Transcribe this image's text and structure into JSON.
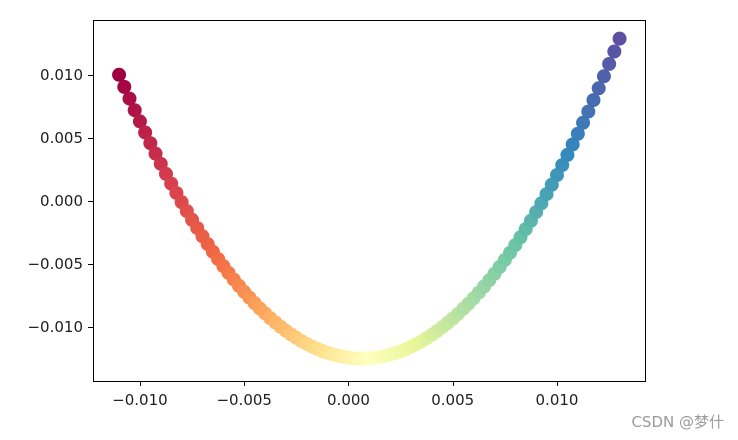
{
  "watermark": {
    "text": "CSDN @梦什"
  },
  "chart_data": {
    "type": "scatter",
    "xlim": [
      -0.01225,
      0.01422
    ],
    "ylim": [
      -0.01429,
      0.01437
    ],
    "x_ticks": [
      -0.01,
      -0.005,
      0.0,
      0.005,
      0.01
    ],
    "x_tick_labels": [
      "−0.010",
      "−0.005",
      "0.000",
      "0.005",
      "0.010"
    ],
    "y_ticks": [
      -0.01,
      -0.005,
      0.0,
      0.005,
      0.01
    ],
    "y_tick_labels": [
      "−0.010",
      "−0.005",
      "0.000",
      "0.005",
      "0.010"
    ],
    "grid": false,
    "legend": "none",
    "colormap": "Spectral",
    "colormap_stops": [
      "#9e0142",
      "#d53e4f",
      "#f46d43",
      "#fdae61",
      "#fee08b",
      "#ffffbf",
      "#e6f598",
      "#abdda4",
      "#66c2a5",
      "#3288bd",
      "#5e4fa2"
    ],
    "x": [
      -0.011,
      -0.01075,
      -0.0105,
      -0.01025,
      -0.01,
      -0.00975,
      -0.0095,
      -0.00925,
      -0.009,
      -0.00875,
      -0.0085,
      -0.00825,
      -0.008,
      -0.00775,
      -0.0075,
      -0.00725,
      -0.007,
      -0.00675,
      -0.0065,
      -0.00625,
      -0.006,
      -0.00575,
      -0.0055,
      -0.00525,
      -0.005,
      -0.00475,
      -0.0045,
      -0.00425,
      -0.004,
      -0.00375,
      -0.0035,
      -0.00325,
      -0.003,
      -0.00275,
      -0.0025,
      -0.00225,
      -0.002,
      -0.00175,
      -0.0015,
      -0.00125,
      -0.001,
      -0.00075,
      -0.0005,
      -0.00025,
      0.0,
      0.00025,
      0.0005,
      0.00075,
      0.001,
      0.00125,
      0.0015,
      0.00175,
      0.002,
      0.00225,
      0.0025,
      0.00275,
      0.003,
      0.00325,
      0.0035,
      0.00375,
      0.004,
      0.00425,
      0.0045,
      0.00475,
      0.005,
      0.00525,
      0.0055,
      0.00575,
      0.006,
      0.00625,
      0.0065,
      0.00675,
      0.007,
      0.00725,
      0.0075,
      0.00775,
      0.008,
      0.00825,
      0.0085,
      0.00875,
      0.009,
      0.00925,
      0.0095,
      0.00975,
      0.01,
      0.01025,
      0.0105,
      0.01075,
      0.011,
      0.01125,
      0.0115,
      0.01175,
      0.012,
      0.01225,
      0.0125,
      0.01275,
      0.013
    ],
    "y": [
      0.01002,
      0.00906,
      0.00813,
      0.00721,
      0.00632,
      0.00544,
      0.00459,
      0.00376,
      0.00295,
      0.00215,
      0.00138,
      0.00064,
      -9e-05,
      -0.0008,
      -0.00149,
      -0.00215,
      -0.0028,
      -0.00342,
      -0.00403,
      -0.00461,
      -0.00517,
      -0.00571,
      -0.00623,
      -0.00673,
      -0.00721,
      -0.00767,
      -0.00811,
      -0.00853,
      -0.00892,
      -0.0093,
      -0.00965,
      -0.00999,
      -0.0103,
      -0.01059,
      -0.01086,
      -0.01111,
      -0.01134,
      -0.01155,
      -0.01174,
      -0.01191,
      -0.01205,
      -0.01218,
      -0.01228,
      -0.01237,
      -0.01243,
      -0.01248,
      -0.0125,
      -0.0125,
      -0.01248,
      -0.01244,
      -0.01238,
      -0.0123,
      -0.01219,
      -0.01207,
      -0.01193,
      -0.01176,
      -0.01157,
      -0.01137,
      -0.01114,
      -0.01089,
      -0.01062,
      -0.01033,
      -0.01002,
      -0.00969,
      -0.00934,
      -0.00897,
      -0.00857,
      -0.00816,
      -0.00773,
      -0.00727,
      -0.00679,
      -0.0063,
      -0.00578,
      -0.00524,
      -0.00468,
      -0.0041,
      -0.0035,
      -0.00288,
      -0.00223,
      -0.00157,
      -0.00088,
      -0.00018,
      0.00055,
      0.00129,
      0.00206,
      0.00285,
      0.00366,
      0.00449,
      0.00534,
      0.00621,
      0.0071,
      0.00801,
      0.00895,
      0.0099,
      0.01088,
      0.01187,
      0.01289
    ]
  }
}
